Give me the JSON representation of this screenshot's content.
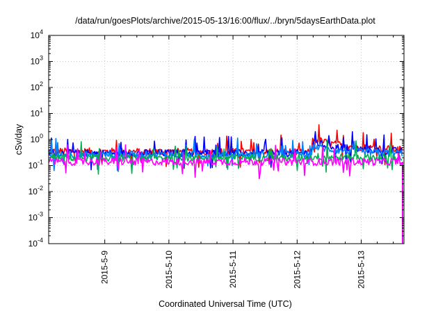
{
  "chart_data": {
    "type": "line",
    "title": "/data/run/goesPlots/archive/2015-05-13/16:00/flux/../bryn/5daysEarthData.plot",
    "xlabel": "Coordinated Universal Time (UTC)",
    "ylabel": "cSv/day",
    "yscale": "log",
    "ylim": [
      0.0001,
      10000
    ],
    "yticks": [
      {
        "base": "10",
        "exp": "4"
      },
      {
        "base": "10",
        "exp": "3"
      },
      {
        "base": "10",
        "exp": "2"
      },
      {
        "base": "10",
        "exp": "1"
      },
      {
        "base": "10",
        "exp": "0"
      },
      {
        "base": "10",
        "exp": "-1"
      },
      {
        "base": "10",
        "exp": "-2"
      },
      {
        "base": "10",
        "exp": "-3"
      },
      {
        "base": "10",
        "exp": "-4"
      }
    ],
    "xlim": [
      "2015-05-08 03:00",
      "2015-05-13 16:00"
    ],
    "xticks": [
      "2015-5-9",
      "2015-5-10",
      "2015-5-11",
      "2015-5-12",
      "2015-5-13"
    ],
    "grid": true,
    "legend": "none",
    "series": [
      {
        "color": "#ff0000",
        "baseline": 0.33,
        "points": [
          [
            "2015-05-08 03:00",
            0.35
          ],
          [
            "2015-05-12 05:00",
            0.33
          ],
          [
            "2015-05-12 06:00",
            1.1
          ],
          [
            "2015-05-12 12:00",
            0.7
          ],
          [
            "2015-05-13 00:00",
            0.5
          ],
          [
            "2015-05-13 16:00",
            0.4
          ]
        ]
      },
      {
        "color": "#0000ff",
        "baseline": 0.3,
        "points": [
          [
            "2015-05-08 03:00",
            0.3
          ],
          [
            "2015-05-12 05:00",
            0.3
          ],
          [
            "2015-05-12 06:00",
            0.8
          ],
          [
            "2015-05-12 12:00",
            0.55
          ],
          [
            "2015-05-13 00:00",
            0.42
          ],
          [
            "2015-05-13 16:00",
            0.35
          ]
        ]
      },
      {
        "color": "#0080ff",
        "baseline": 0.26,
        "points": [
          [
            "2015-05-08 03:00",
            0.26
          ],
          [
            "2015-05-12 05:00",
            0.26
          ],
          [
            "2015-05-12 06:00",
            0.55
          ],
          [
            "2015-05-12 12:00",
            0.42
          ],
          [
            "2015-05-13 00:00",
            0.33
          ],
          [
            "2015-05-13 16:00",
            0.3
          ]
        ]
      },
      {
        "color": "#00b050",
        "baseline": 0.2,
        "points": [
          [
            "2015-05-08 03:00",
            0.2
          ],
          [
            "2015-05-12 05:00",
            0.2
          ],
          [
            "2015-05-12 06:00",
            0.22
          ],
          [
            "2015-05-13 16:00",
            0.2
          ]
        ]
      },
      {
        "color": "#ff00ff",
        "baseline": 0.14,
        "points": [
          [
            "2015-05-08 03:00",
            0.14
          ],
          [
            "2015-05-12 05:00",
            0.14
          ],
          [
            "2015-05-13 16:00",
            0.14
          ]
        ]
      }
    ]
  }
}
